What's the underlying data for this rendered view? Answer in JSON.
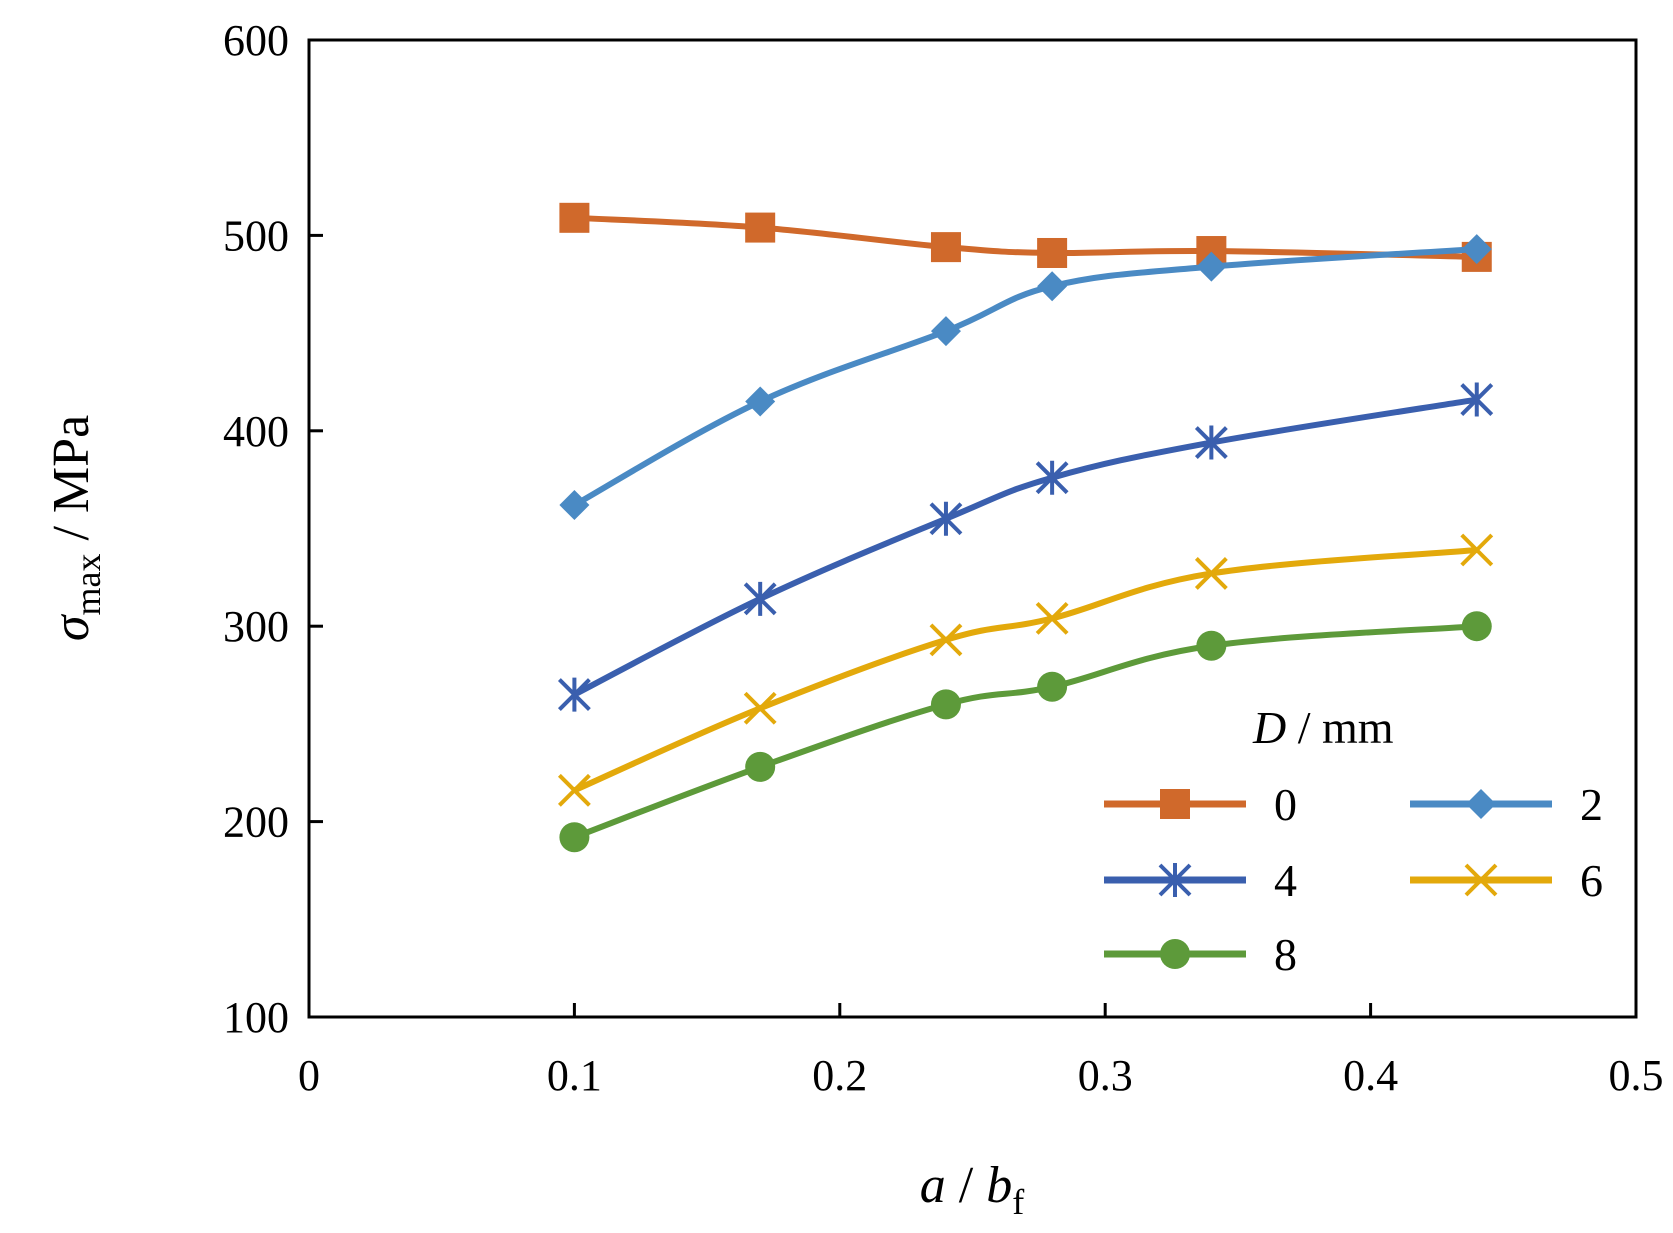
{
  "chart_data": {
    "type": "line",
    "title": "",
    "xlabel": {
      "var": "a",
      "sep": " / ",
      "var2": "b",
      "sub2": "f"
    },
    "ylabel": {
      "var": "σ",
      "sub": "max",
      "unit": " / MPa"
    },
    "xlim": [
      0,
      0.5
    ],
    "ylim": [
      100,
      600
    ],
    "xticks": [
      "0",
      "0.1",
      "0.2",
      "0.3",
      "0.4",
      "0.5"
    ],
    "yticks": [
      "100",
      "200",
      "300",
      "400",
      "500",
      "600"
    ],
    "xtick_values": [
      0,
      0.1,
      0.2,
      0.3,
      0.4,
      0.5
    ],
    "ytick_values": [
      100,
      200,
      300,
      400,
      500,
      600
    ],
    "x": [
      0.1,
      0.17,
      0.24,
      0.28,
      0.34,
      0.44
    ],
    "legend": {
      "title_var": "D",
      "title_unit": " / mm",
      "placement": "bottom-right"
    },
    "series": [
      {
        "name": "0",
        "color": "#D0692B",
        "marker": "square",
        "values": [
          509,
          504,
          494,
          491,
          492,
          489
        ]
      },
      {
        "name": "2",
        "color": "#4A8AC4",
        "marker": "diamond",
        "values": [
          362,
          415,
          451,
          474,
          484,
          493
        ]
      },
      {
        "name": "4",
        "color": "#3A5FAE",
        "marker": "asterisk",
        "values": [
          265,
          314,
          355,
          376,
          394,
          416
        ]
      },
      {
        "name": "6",
        "color": "#E3A90B",
        "marker": "x",
        "values": [
          216,
          258,
          293,
          304,
          327,
          339
        ]
      },
      {
        "name": "8",
        "color": "#5D9A3A",
        "marker": "circle",
        "values": [
          192,
          228,
          260,
          269,
          290,
          300
        ]
      }
    ]
  }
}
